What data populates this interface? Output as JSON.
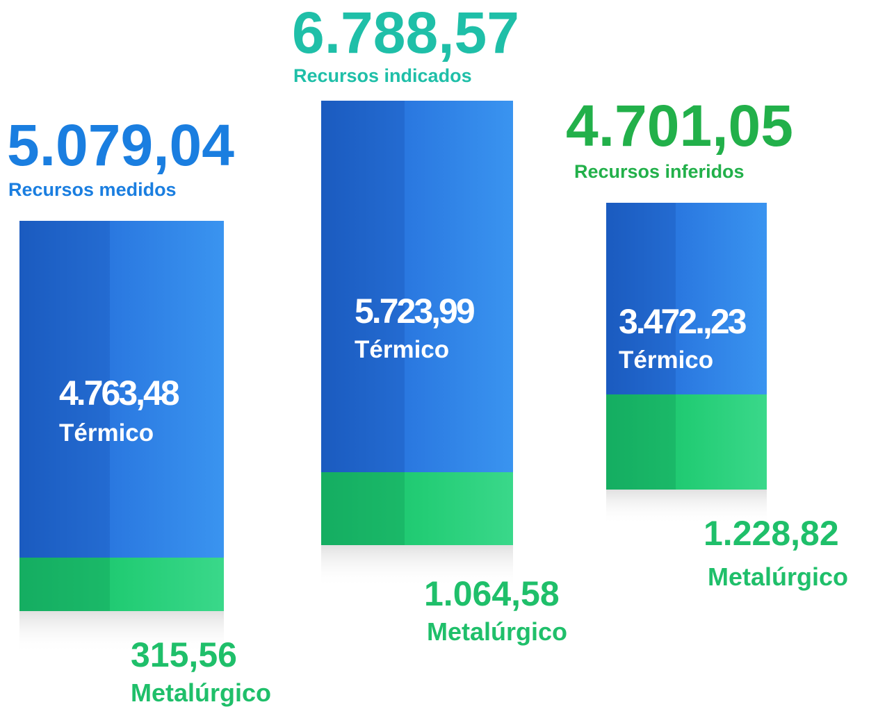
{
  "columns": [
    {
      "total": "5.079,04",
      "total_label": "Recursos medidos",
      "thermal": "4.763,48",
      "thermal_label": "Térmico",
      "metallurgical": "315,56",
      "metallurgical_label": "Metalúrgico"
    },
    {
      "total": "6.788,57",
      "total_label": "Recursos indicados",
      "thermal": "5.723,99",
      "thermal_label": "Térmico",
      "metallurgical": "1.064,58",
      "metallurgical_label": "Metalúrgico"
    },
    {
      "total": "4.701,05",
      "total_label": "Recursos inferidos",
      "thermal": "3.472.,23",
      "thermal_label": "Térmico",
      "metallurgical": "1.228,82",
      "metallurgical_label": "Metalúrgico"
    }
  ]
}
